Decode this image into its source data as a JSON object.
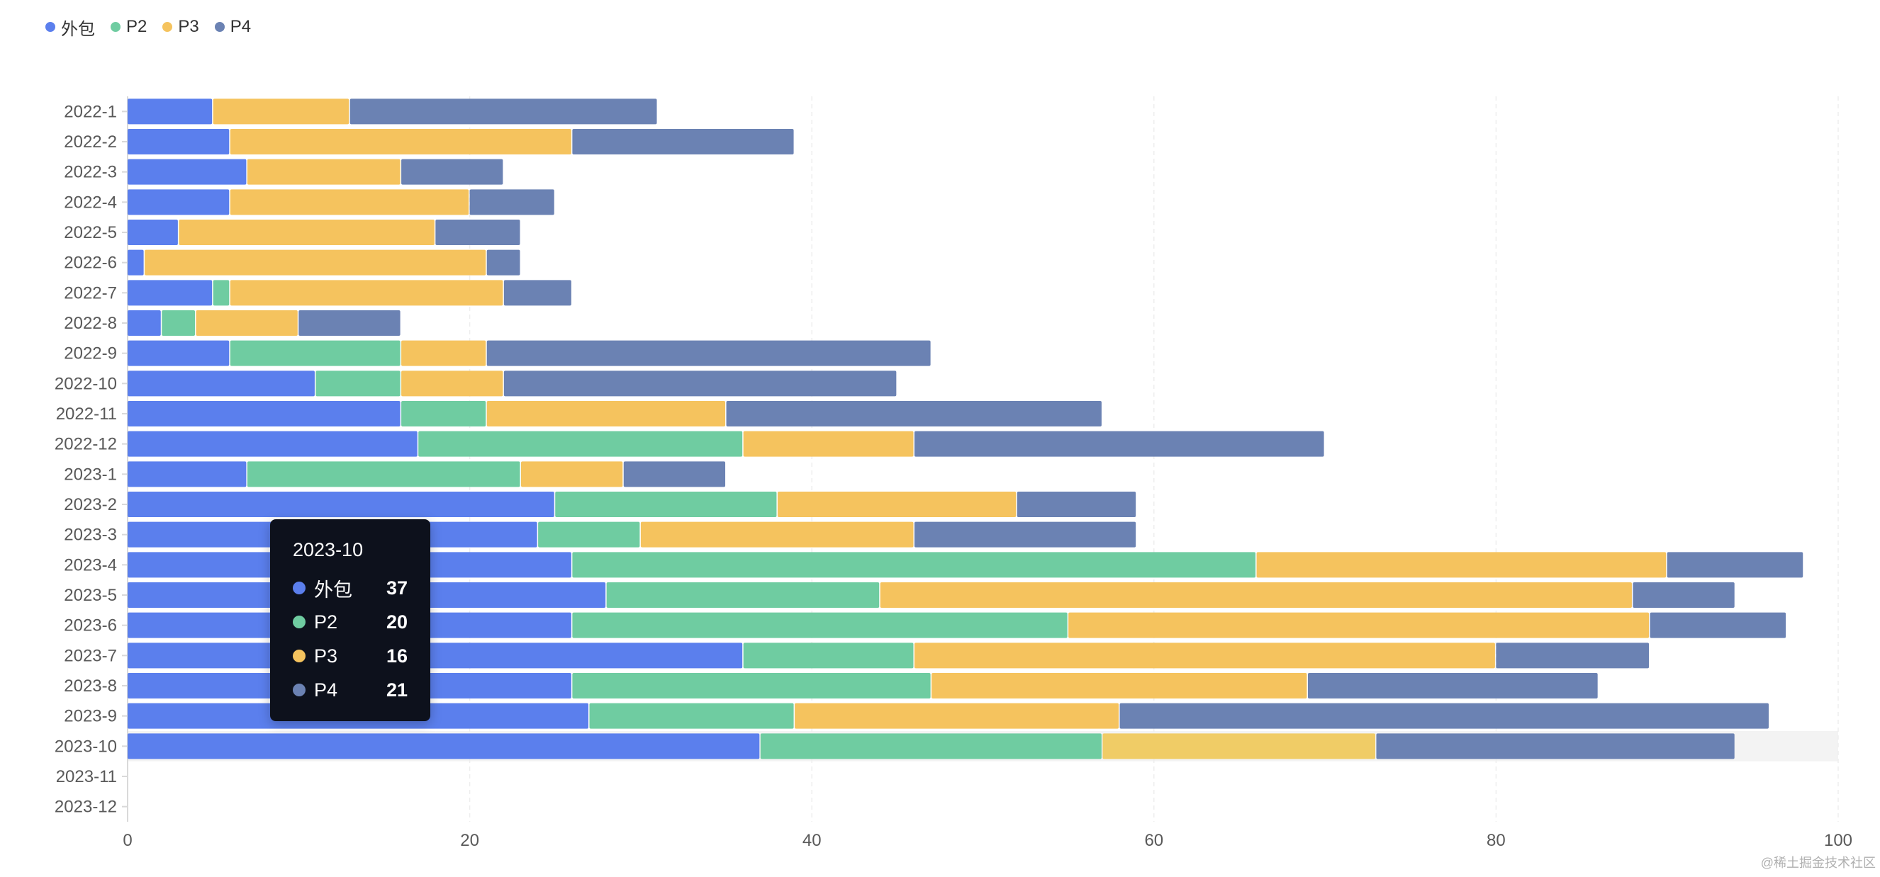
{
  "colors": {
    "series": [
      "#5b7fed",
      "#6fcca1",
      "#f5c35e",
      "#6b82b3"
    ],
    "hover_band": "#f3f3f3",
    "axis": "#d9d9d9",
    "grid": "#eeeeee"
  },
  "legend": [
    {
      "label": "外包",
      "color": "#5b7fed"
    },
    {
      "label": "P2",
      "color": "#6fcca1"
    },
    {
      "label": "P3",
      "color": "#f5c35e"
    },
    {
      "label": "P4",
      "color": "#6b82b3"
    }
  ],
  "tooltip": {
    "title": "2023-10",
    "rows": [
      {
        "name": "外包",
        "value": "37",
        "color": "#5b7fed"
      },
      {
        "name": "P2",
        "value": "20",
        "color": "#6fcca1"
      },
      {
        "name": "P3",
        "value": "16",
        "color": "#f5c35e"
      },
      {
        "name": "P4",
        "value": "21",
        "color": "#6b82b3"
      }
    ]
  },
  "watermark": "@稀土掘金技术社区",
  "chart_data": {
    "type": "bar",
    "orientation": "horizontal",
    "stacked": true,
    "categories": [
      "2022-1",
      "2022-2",
      "2022-3",
      "2022-4",
      "2022-5",
      "2022-6",
      "2022-7",
      "2022-8",
      "2022-9",
      "2022-10",
      "2022-11",
      "2022-12",
      "2023-1",
      "2023-2",
      "2023-3",
      "2023-4",
      "2023-5",
      "2023-6",
      "2023-7",
      "2023-8",
      "2023-9",
      "2023-10",
      "2023-11",
      "2023-12"
    ],
    "series": [
      {
        "name": "外包",
        "values": [
          5,
          6,
          7,
          6,
          3,
          1,
          5,
          2,
          6,
          11,
          16,
          17,
          7,
          25,
          24,
          26,
          28,
          26,
          36,
          26,
          27,
          37,
          0,
          0
        ]
      },
      {
        "name": "P2",
        "values": [
          0,
          0,
          0,
          0,
          0,
          0,
          1,
          2,
          10,
          5,
          5,
          19,
          16,
          13,
          6,
          40,
          16,
          29,
          10,
          21,
          12,
          20,
          0,
          0
        ]
      },
      {
        "name": "P3",
        "values": [
          8,
          20,
          9,
          14,
          15,
          20,
          16,
          6,
          5,
          6,
          14,
          10,
          6,
          14,
          16,
          24,
          44,
          34,
          34,
          22,
          19,
          16,
          0,
          0
        ]
      },
      {
        "name": "P4",
        "values": [
          18,
          13,
          6,
          5,
          5,
          2,
          4,
          6,
          26,
          23,
          22,
          24,
          6,
          7,
          13,
          8,
          6,
          8,
          9,
          17,
          38,
          21,
          0,
          0
        ]
      }
    ],
    "xlim": [
      0,
      100
    ],
    "xticks": [
      0,
      20,
      40,
      60,
      80,
      100
    ],
    "grid": true,
    "legend_position": "top-left",
    "highlighted_category": "2023-10"
  }
}
